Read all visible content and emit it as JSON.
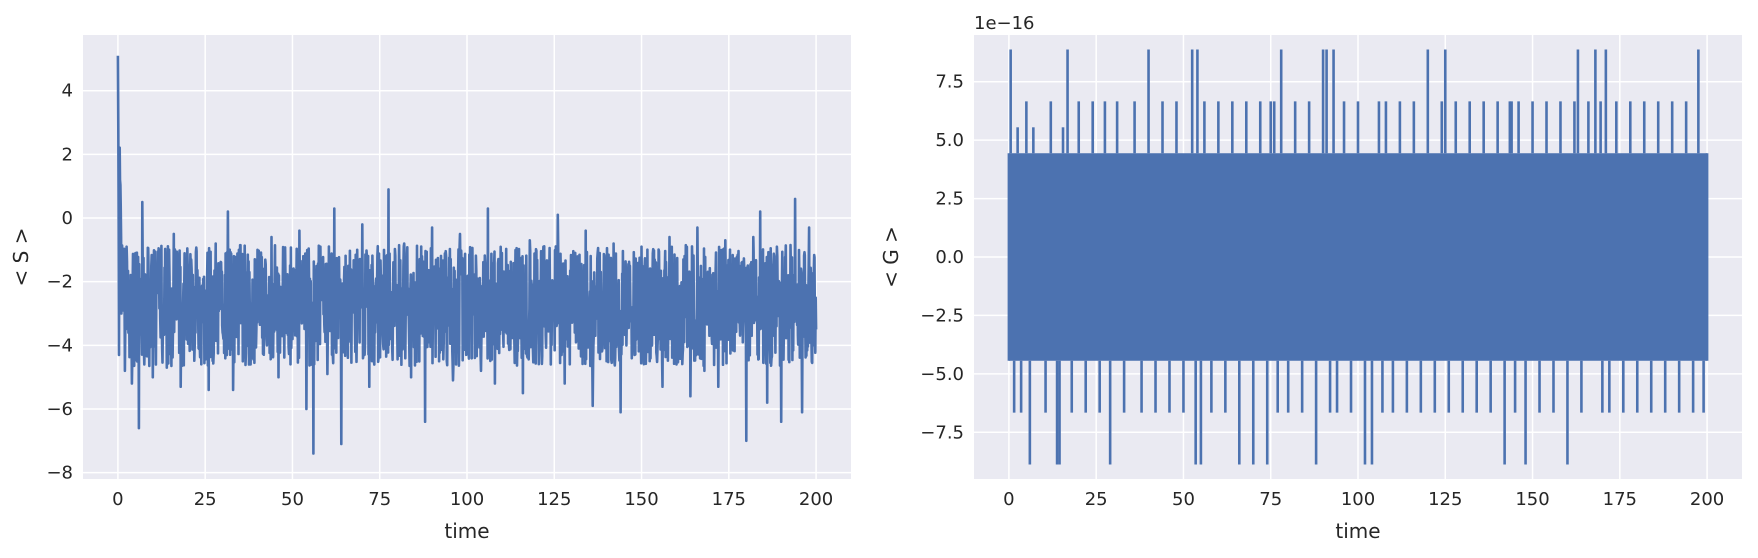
{
  "chart_data": [
    {
      "type": "line",
      "title": "",
      "xlabel": "time",
      "ylabel": "< S >",
      "xlim": [
        -10,
        210
      ],
      "ylim": [
        -8.2,
        5.75
      ],
      "xticks": [
        0,
        25,
        50,
        75,
        100,
        125,
        150,
        175,
        200
      ],
      "xtick_labels": [
        "0",
        "25",
        "50",
        "75",
        "100",
        "125",
        "150",
        "175",
        "200"
      ],
      "yticks": [
        -8,
        -6,
        -4,
        -2,
        0,
        2,
        4
      ],
      "ytick_labels": [
        "−8",
        "−6",
        "−4",
        "−2",
        "0",
        "2",
        "4"
      ],
      "offset_text": "",
      "grid": true,
      "legend": "none",
      "colors": {
        "line": "#4c72b0",
        "axes_bg": "#eaeaf2",
        "grid": "#ffffff"
      },
      "series": [
        {
          "x": [
            0,
            0.3,
            0.6,
            1,
            1.5,
            2,
            2.5,
            3,
            4,
            5,
            6,
            7,
            8,
            10,
            12,
            14,
            16,
            18,
            20,
            22,
            24,
            26,
            28,
            30,
            31.5,
            33,
            36,
            38,
            40,
            42,
            44,
            46,
            48,
            50,
            52,
            54,
            56,
            58,
            60,
            62,
            64,
            66,
            68,
            70,
            72,
            74,
            76,
            77.5,
            80,
            82,
            84,
            86,
            88,
            90,
            92,
            94,
            96,
            98,
            100,
            102,
            104,
            106,
            108,
            110,
            112,
            114,
            116,
            118,
            120,
            122,
            124,
            126,
            128,
            130,
            132,
            134,
            136,
            138,
            140,
            142,
            144,
            146,
            148,
            150,
            152,
            154,
            156,
            158,
            160,
            162,
            164,
            166,
            168,
            170,
            172,
            174,
            176,
            178,
            180,
            182,
            184,
            186,
            188,
            190,
            192,
            194,
            196,
            198,
            200
          ],
          "y": [
            5.1,
            -4.3,
            1.2,
            -3,
            -1,
            -4.8,
            -0.9,
            -3.6,
            -5.2,
            -1.1,
            -6.6,
            0.5,
            -2.5,
            -5,
            -1,
            -4.7,
            -0.5,
            -5.3,
            -1.5,
            -4,
            -2.2,
            -5.4,
            -0.8,
            -3.6,
            0.2,
            -5.4,
            -1.3,
            -4.6,
            -1,
            -3.7,
            -0.6,
            -5,
            -2,
            -3.8,
            -0.4,
            -6,
            -7.4,
            -0.9,
            -4.9,
            0.3,
            -7.1,
            -1.5,
            -4.2,
            -0.2,
            -5.3,
            -1.9,
            -4,
            0.9,
            -3.5,
            -0.8,
            -5,
            -1.7,
            -6.4,
            -0.3,
            -4.5,
            -1.2,
            -5.1,
            -0.5,
            -3.7,
            -1.8,
            -4.8,
            0.3,
            -5.2,
            -1.1,
            -4,
            -2,
            -5.5,
            -0.7,
            -3.6,
            -2.3,
            -4.6,
            0.1,
            -5.2,
            -1.7,
            -4.1,
            -0.4,
            -5.9,
            -1.1,
            -4.5,
            -0.8,
            -6.1,
            -1.6,
            -4.3,
            -0.9,
            -3.8,
            -2,
            -5.3,
            -0.6,
            -4.6,
            -1.3,
            -5.6,
            -0.3,
            -4.8,
            -1.9,
            -5.3,
            -0.7,
            -4.1,
            -1.5,
            -7,
            -0.6,
            0.2,
            -5.8,
            -1.2,
            -6.4,
            -1.8,
            0.6,
            -6.1,
            -0.3,
            -3.5
          ]
        }
      ]
    },
    {
      "type": "line",
      "title": "",
      "xlabel": "time",
      "ylabel": "< G >",
      "xlim": [
        -10,
        210
      ],
      "ylim": [
        -9.5,
        9.5
      ],
      "xticks": [
        0,
        25,
        50,
        75,
        100,
        125,
        150,
        175,
        200
      ],
      "xtick_labels": [
        "0",
        "25",
        "50",
        "75",
        "100",
        "125",
        "150",
        "175",
        "200"
      ],
      "yticks": [
        -7.5,
        -5,
        -2.5,
        0,
        2.5,
        5,
        7.5
      ],
      "ytick_labels": [
        "−7.5",
        "−5.0",
        "−2.5",
        "0.0",
        "2.5",
        "5.0",
        "7.5"
      ],
      "offset_text": "1e−16",
      "grid": true,
      "legend": "none",
      "colors": {
        "line": "#4c72b0",
        "axes_bg": "#eaeaf2",
        "grid": "#ffffff"
      },
      "band": {
        "upper": 4.44,
        "lower": -4.44
      },
      "series": [
        {
          "spike_x": [
            0.5,
            1.5,
            2.5,
            3.5,
            5,
            6,
            7,
            10.5,
            12,
            13.8,
            14.5,
            15.5,
            16.8,
            18,
            20,
            22,
            24,
            26,
            27.5,
            29,
            31,
            33,
            36,
            38,
            40,
            42,
            44,
            46,
            48,
            50,
            52.5,
            53.5,
            54,
            55,
            56,
            58,
            60,
            62,
            64,
            66,
            68,
            70,
            72,
            74,
            75,
            76,
            77,
            78,
            80,
            82,
            84,
            86,
            88,
            90,
            91,
            92,
            93,
            94,
            96,
            98,
            100,
            102,
            104,
            106,
            107,
            108,
            110,
            112,
            114,
            116,
            118,
            120,
            122,
            124,
            125,
            126,
            128,
            130,
            132,
            134,
            136,
            138,
            140,
            142,
            143.5,
            144,
            145,
            146,
            148,
            150,
            152,
            154,
            156,
            158,
            160,
            162,
            163,
            164,
            166,
            168,
            169.5,
            170,
            171,
            172,
            174,
            176,
            178,
            180,
            182,
            184,
            186,
            188,
            190,
            192,
            194,
            196,
            197.5,
            199
          ],
          "spike_y": [
            8.88,
            -6.66,
            5.55,
            -6.66,
            6.66,
            -8.88,
            5.55,
            -6.66,
            6.66,
            -8.88,
            -8.88,
            5.55,
            8.88,
            -6.66,
            6.66,
            -6.66,
            6.66,
            -6.66,
            6.66,
            -8.88,
            6.66,
            -6.66,
            6.66,
            -6.66,
            8.88,
            -6.66,
            6.66,
            -6.66,
            6.66,
            -6.66,
            8.88,
            -8.88,
            8.88,
            -8.88,
            6.66,
            -6.66,
            6.66,
            -6.66,
            6.66,
            -8.88,
            6.66,
            -8.88,
            6.66,
            -8.88,
            6.66,
            6.66,
            -6.66,
            8.88,
            -6.66,
            6.66,
            -6.66,
            6.66,
            -8.88,
            8.88,
            8.88,
            -6.66,
            8.88,
            -6.66,
            6.66,
            -6.66,
            6.66,
            -8.88,
            -8.88,
            6.66,
            -6.66,
            6.66,
            -6.66,
            6.66,
            -6.66,
            6.66,
            -6.66,
            8.88,
            -6.66,
            6.66,
            8.88,
            -6.66,
            6.66,
            -6.66,
            6.66,
            -6.66,
            6.66,
            -6.66,
            6.66,
            -8.88,
            6.66,
            6.66,
            -6.66,
            6.66,
            -8.88,
            6.66,
            -6.66,
            6.66,
            -6.66,
            6.66,
            -8.88,
            6.66,
            8.88,
            -6.66,
            6.66,
            8.88,
            6.66,
            -6.66,
            8.88,
            -6.66,
            6.66,
            -6.66,
            6.66,
            -6.66,
            6.66,
            -6.66,
            6.66,
            -6.66,
            6.66,
            -6.66,
            6.66,
            -6.66,
            8.88,
            -6.66
          ]
        }
      ]
    }
  ]
}
